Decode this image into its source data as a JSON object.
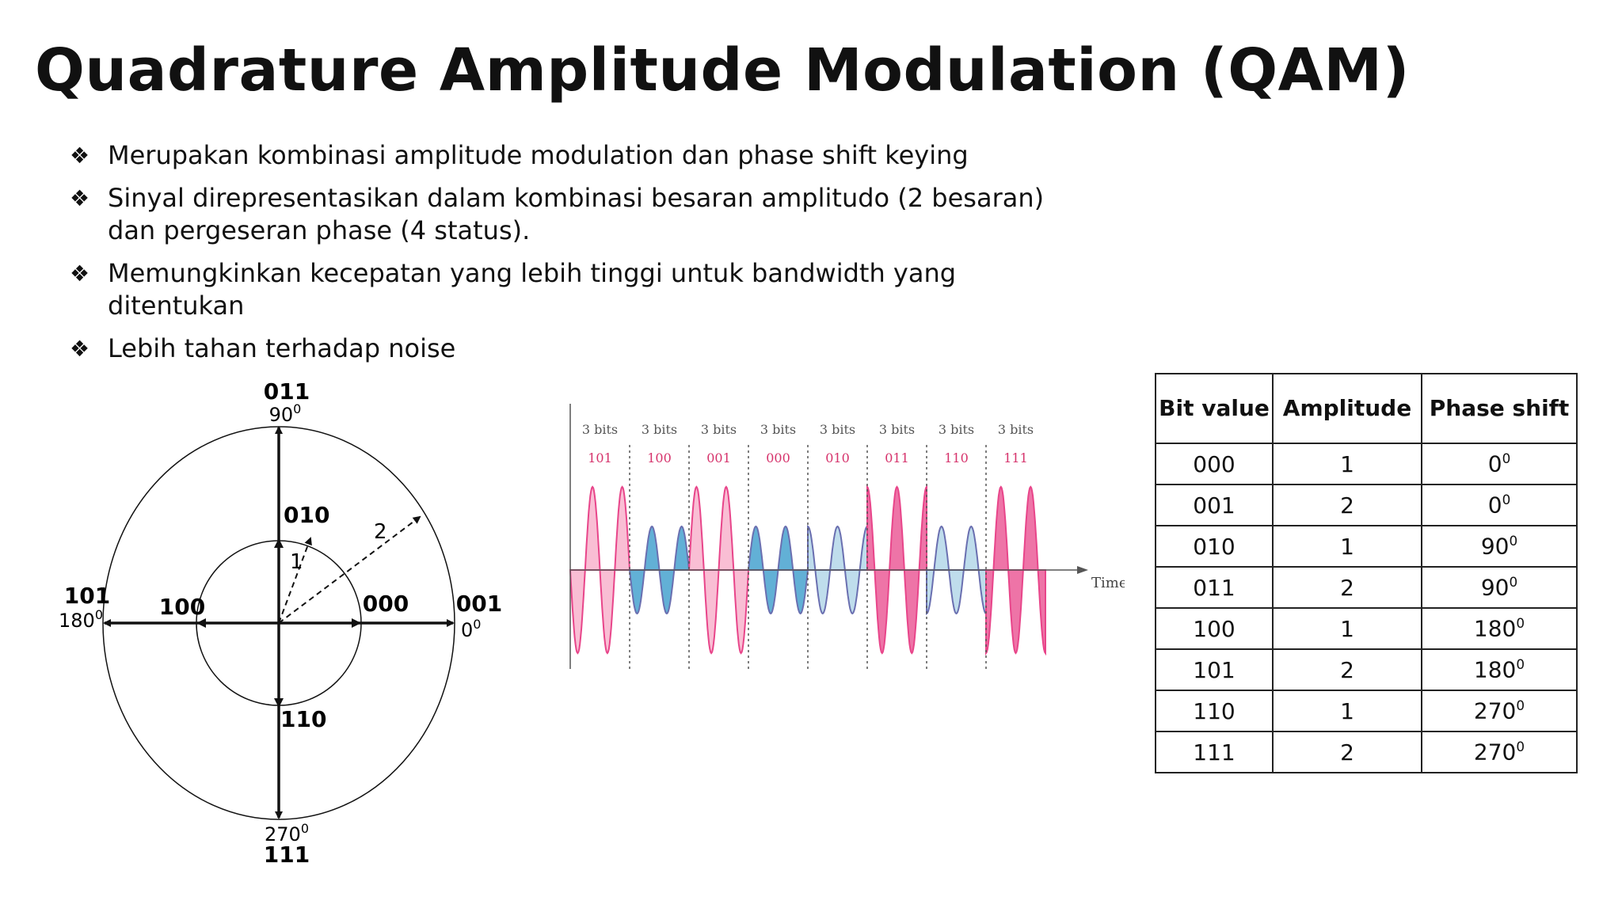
{
  "title": "Quadrature Amplitude Modulation (QAM)",
  "bullet_icon": "four-diamond-icon",
  "bullets": [
    "Merupakan kombinasi amplitude modulation dan phase shift keying",
    "Sinyal direpresentasikan dalam kombinasi besaran amplitudo (2 besaran) dan pergeseran phase (4 status).",
    "Memungkinkan kecepatan yang lebih tinggi untuk bandwidth yang ditentukan",
    "Lebih tahan terhadap noise"
  ],
  "constellation": {
    "labels": {
      "top_code": "011",
      "top_angle": "90",
      "bottom_code": "111",
      "bottom_angle": "270",
      "left_code": "101",
      "left_angle": "180",
      "right_code": "001",
      "right_angle": "0",
      "inner_top": "010",
      "inner_left": "100",
      "inner_right": "000",
      "inner_bottom": "110",
      "vector_inner": "1",
      "vector_outer": "2",
      "degree_mark": "0"
    }
  },
  "waveform": {
    "segment_label": "3 bits",
    "bits": [
      "101",
      "100",
      "001",
      "000",
      "010",
      "011",
      "110",
      "111"
    ],
    "time_label": "Time",
    "colors": {
      "high": "#f7a8c6",
      "high_dark": "#e8458a",
      "low": "#a9d2e6",
      "low_dark": "#2d96c8",
      "bit_text": "#d6336c"
    }
  },
  "table": {
    "headers": [
      "Bit value",
      "Amplitude",
      "Phase shift"
    ],
    "rows": [
      [
        "000",
        "1",
        "0"
      ],
      [
        "001",
        "2",
        "0"
      ],
      [
        "010",
        "1",
        "90"
      ],
      [
        "011",
        "2",
        "90"
      ],
      [
        "100",
        "1",
        "180"
      ],
      [
        "101",
        "2",
        "180"
      ],
      [
        "110",
        "1",
        "270"
      ],
      [
        "111",
        "2",
        "270"
      ]
    ],
    "degree_mark": "0"
  }
}
